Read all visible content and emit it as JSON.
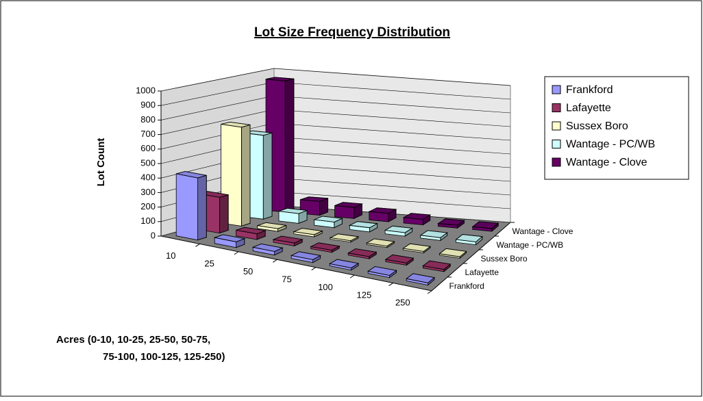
{
  "chart_data": {
    "type": "bar3d",
    "title": "Lot Size Frequency Distribution",
    "ylabel": "Lot Count",
    "xlabel": [
      "Acres (0-10, 10-25, 25-50, 50-75,",
      "75-100, 100-125, 125-250)"
    ],
    "categories": [
      "10",
      "25",
      "50",
      "75",
      "100",
      "125",
      "250"
    ],
    "series": [
      {
        "name": "Frankford",
        "color": "#9999ff",
        "values": [
          430,
          40,
          25,
          20,
          15,
          15,
          15
        ]
      },
      {
        "name": "Lafayette",
        "color": "#993366",
        "values": [
          250,
          40,
          20,
          15,
          15,
          15,
          15
        ]
      },
      {
        "name": "Sussex Boro",
        "color": "#ffffcc",
        "values": [
          700,
          20,
          15,
          10,
          10,
          10,
          10
        ]
      },
      {
        "name": "Wantage - PC/WB",
        "color": "#ccffff",
        "values": [
          600,
          70,
          40,
          30,
          25,
          20,
          20
        ]
      },
      {
        "name": "Wantage - Clove",
        "color": "#660066",
        "values": [
          950,
          100,
          80,
          60,
          40,
          20,
          20
        ]
      }
    ],
    "ylim": [
      0,
      1000
    ],
    "yticks": [
      0,
      100,
      200,
      300,
      400,
      500,
      600,
      700,
      800,
      900,
      1000
    ],
    "grid": true,
    "legend": "right"
  }
}
